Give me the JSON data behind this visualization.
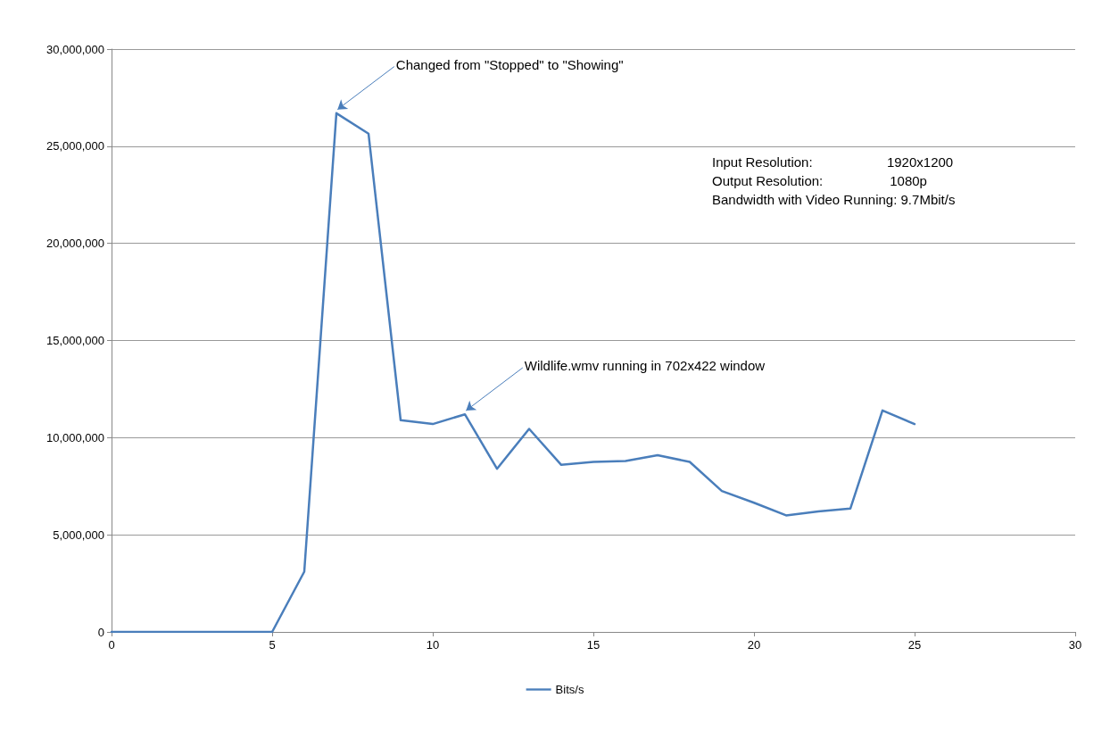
{
  "chart_data": {
    "type": "line",
    "x": [
      0,
      1,
      2,
      3,
      4,
      5,
      6,
      7,
      8,
      9,
      10,
      11,
      12,
      13,
      14,
      15,
      16,
      17,
      18,
      19,
      20,
      21,
      22,
      23,
      24,
      25
    ],
    "series": [
      {
        "name": "Bits/s",
        "color": "#4a7ebb",
        "values": [
          0,
          0,
          0,
          0,
          0,
          0,
          3100000,
          26700000,
          25650000,
          10900000,
          10700000,
          11200000,
          8400000,
          10450000,
          8600000,
          8750000,
          8800000,
          9100000,
          8750000,
          7250000,
          6650000,
          6000000,
          6200000,
          6350000,
          11400000,
          10700000
        ]
      }
    ],
    "xlim": [
      0,
      30
    ],
    "xticks": [
      0,
      5,
      10,
      15,
      20,
      25,
      30
    ],
    "ylim": [
      0,
      30000000
    ],
    "yticks": [
      {
        "value": 0,
        "label": "0"
      },
      {
        "value": 5000000,
        "label": "5,000,000"
      },
      {
        "value": 10000000,
        "label": "10,000,000"
      },
      {
        "value": 15000000,
        "label": "15,000,000"
      },
      {
        "value": 20000000,
        "label": "20,000,000"
      },
      {
        "value": 25000000,
        "label": "25,000,000"
      },
      {
        "value": 30000000,
        "label": "30,000,000"
      }
    ],
    "annotations": [
      {
        "text": "Changed from \"Stopped\" to \"Showing\"",
        "x": 7,
        "y": 26700000
      },
      {
        "text": "Wildlife.wmv running in 702x422 window",
        "x": 11,
        "y": 11200000
      },
      "Input Resolution:                    1920x1200",
      "Output Resolution:                  1080p",
      "Bandwidth with Video Running: 9.7Mbit/s"
    ],
    "grid": "y",
    "legend": "bottom",
    "marker": "none",
    "line_style": "solid"
  }
}
